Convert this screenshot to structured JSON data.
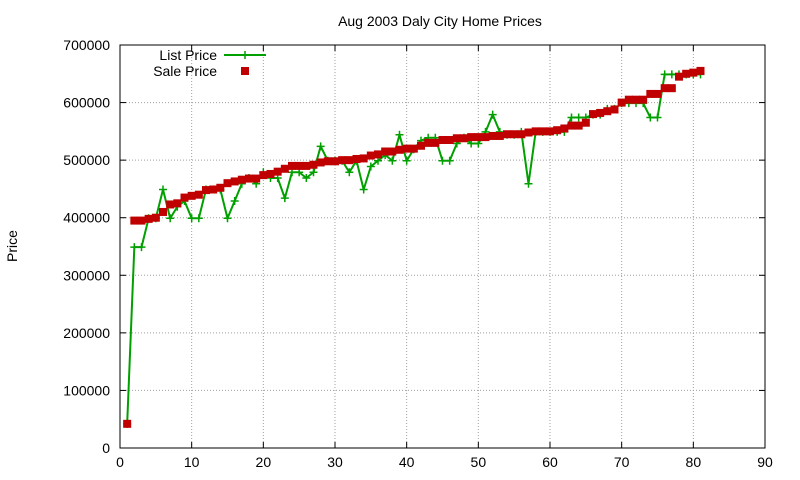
{
  "chart_data": {
    "type": "line",
    "title": "Aug 2003 Daly City Home Prices",
    "xlabel": "",
    "ylabel": "Price",
    "xlim": [
      0,
      90
    ],
    "ylim": [
      0,
      700000
    ],
    "xticks": [
      0,
      10,
      20,
      30,
      40,
      50,
      60,
      70,
      80,
      90
    ],
    "yticks": [
      0,
      100000,
      200000,
      300000,
      400000,
      500000,
      600000,
      700000
    ],
    "grid": true,
    "legend_position": "top-left",
    "series": [
      {
        "name": "List Price",
        "style": "line-points",
        "color": "#00a000",
        "x": [
          1,
          2,
          3,
          4,
          5,
          6,
          7,
          8,
          9,
          10,
          11,
          12,
          13,
          14,
          15,
          16,
          17,
          18,
          19,
          20,
          21,
          22,
          23,
          24,
          25,
          26,
          27,
          28,
          29,
          30,
          31,
          32,
          33,
          34,
          35,
          36,
          37,
          38,
          39,
          40,
          41,
          42,
          43,
          44,
          45,
          46,
          47,
          48,
          49,
          50,
          51,
          52,
          53,
          54,
          55,
          56,
          57,
          58,
          59,
          60,
          61,
          62,
          63,
          64,
          65,
          66,
          67,
          68,
          69,
          70,
          71,
          72,
          73,
          74,
          75,
          76,
          77,
          78,
          79,
          80,
          81
        ],
        "y": [
          42000,
          349000,
          349000,
          399000,
          399000,
          449000,
          399000,
          419000,
          429000,
          399000,
          399000,
          449000,
          449000,
          449000,
          399000,
          429000,
          459000,
          469000,
          459000,
          479000,
          469000,
          469000,
          434000,
          479000,
          479000,
          469000,
          479000,
          524000,
          499000,
          499000,
          499000,
          479000,
          499000,
          449000,
          489000,
          499000,
          509000,
          499000,
          544000,
          499000,
          519000,
          534000,
          539000,
          539000,
          499000,
          499000,
          529000,
          539000,
          529000,
          529000,
          549000,
          579000,
          549000,
          544000,
          544000,
          549000,
          459000,
          549000,
          549000,
          549000,
          549000,
          549000,
          574000,
          574000,
          574000,
          579000,
          579000,
          589000,
          589000,
          599000,
          599000,
          599000,
          599000,
          574000,
          574000,
          649000,
          649000,
          649000,
          649000,
          649000,
          649000
        ]
      },
      {
        "name": "Sale Price",
        "style": "points",
        "color": "#c00000",
        "x": [
          1,
          2,
          3,
          4,
          5,
          6,
          7,
          8,
          9,
          10,
          11,
          12,
          13,
          14,
          15,
          16,
          17,
          18,
          19,
          20,
          21,
          22,
          23,
          24,
          25,
          26,
          27,
          28,
          29,
          30,
          31,
          32,
          33,
          34,
          35,
          36,
          37,
          38,
          39,
          40,
          41,
          42,
          43,
          44,
          45,
          46,
          47,
          48,
          49,
          50,
          51,
          52,
          53,
          54,
          55,
          56,
          57,
          58,
          59,
          60,
          61,
          62,
          63,
          64,
          65,
          66,
          67,
          68,
          69,
          70,
          71,
          72,
          73,
          74,
          75,
          76,
          77,
          78,
          79,
          80,
          81
        ],
        "y": [
          42000,
          395000,
          395000,
          398000,
          400000,
          410000,
          423000,
          425000,
          435000,
          438000,
          440000,
          448000,
          449000,
          452000,
          460000,
          463000,
          466000,
          468000,
          468000,
          474000,
          476000,
          480000,
          485000,
          490000,
          490000,
          490000,
          492000,
          496000,
          498000,
          498000,
          500000,
          500000,
          502000,
          503000,
          508000,
          510000,
          515000,
          515000,
          518000,
          520000,
          520000,
          525000,
          530000,
          530000,
          535000,
          535000,
          538000,
          538000,
          540000,
          540000,
          540000,
          542000,
          542000,
          545000,
          545000,
          545000,
          548000,
          550000,
          550000,
          550000,
          552000,
          555000,
          560000,
          560000,
          565000,
          580000,
          582000,
          585000,
          588000,
          600000,
          605000,
          605000,
          605000,
          615000,
          615000,
          625000,
          625000,
          645000,
          650000,
          652000,
          655000
        ]
      }
    ]
  }
}
